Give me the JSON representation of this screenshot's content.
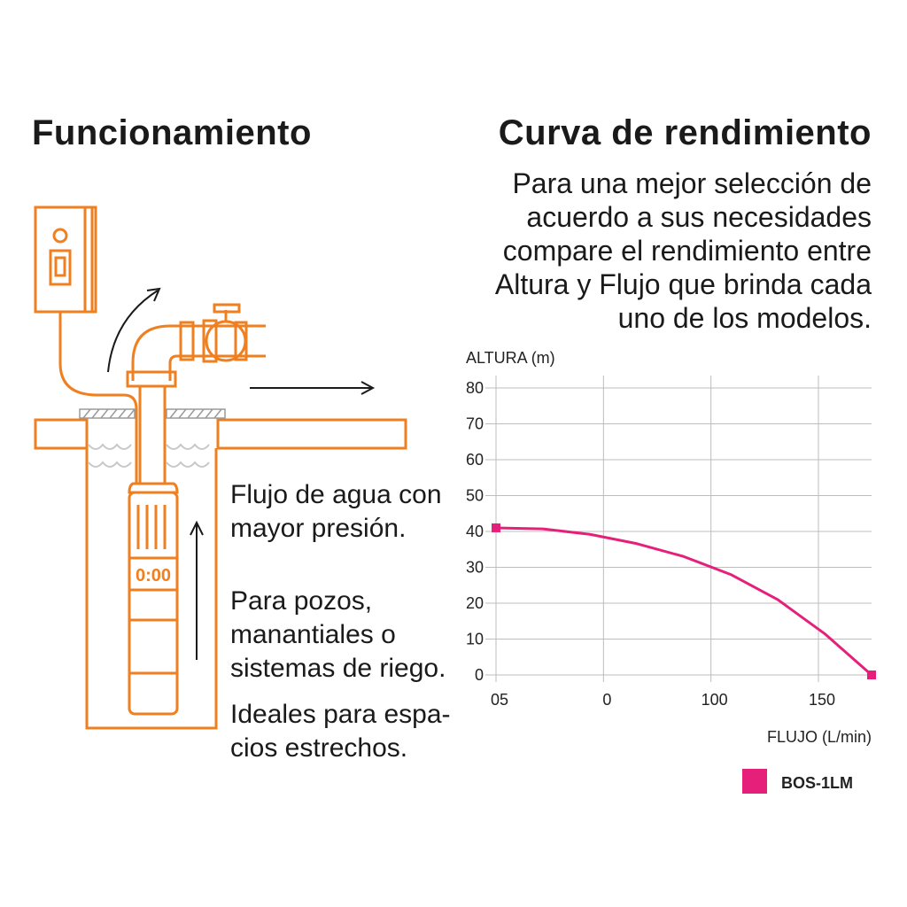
{
  "left_title": "Funcionamiento",
  "right_title": "Curva de rendimiento",
  "intro_lines": [
    "Para una mejor selección de",
    "acuerdo a sus necesidades",
    "compare el rendimiento entre",
    "Altura y Flujo que brinda cada",
    "uno de los modelos."
  ],
  "descriptions": {
    "flow": [
      "Flujo de agua con",
      "mayor presión."
    ],
    "uses": [
      "Para pozos,",
      "manantiales o",
      "sistemas de riego."
    ],
    "space": [
      "Ideales para espa-",
      "cios estrechos."
    ]
  },
  "illustration": {
    "motor_label": "0:00",
    "icons": [
      "control-box-icon",
      "pipe-elbow-icon",
      "valve-icon",
      "flow-arrow-icon",
      "pump-icon",
      "well-icon"
    ],
    "color": "#f07f20"
  },
  "chart_data": {
    "type": "line",
    "ylabel": "ALTURA (m)",
    "xlabel": "FLUJO (L/min)",
    "yticks": [
      "80",
      "70",
      "60",
      "50",
      "40",
      "30",
      "20",
      "10",
      "0"
    ],
    "xticks": [
      "05",
      "0",
      "100",
      "150"
    ],
    "ylim": [
      0,
      80
    ],
    "grid": true,
    "legend_placement": "bottom-right",
    "series": [
      {
        "name": "BOS-1LM",
        "color": "#e6207a",
        "x": [
          0,
          20,
          40,
          60,
          80,
          100,
          120,
          140,
          160
        ],
        "y": [
          41,
          40.7,
          39.2,
          36.6,
          33,
          28,
          21,
          11.5,
          0
        ]
      }
    ]
  }
}
